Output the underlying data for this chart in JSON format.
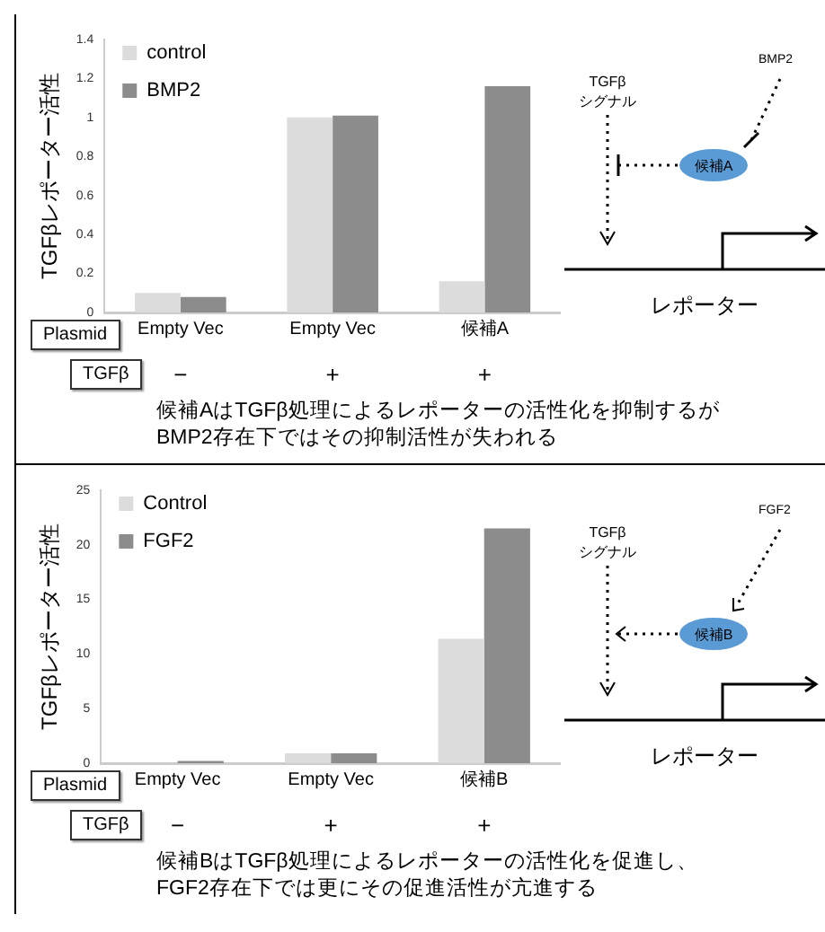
{
  "chart_data": [
    {
      "type": "bar",
      "categories": [
        "Empty Vec",
        "Empty Vec",
        "候補A"
      ],
      "ylabel": "TGFβレポーター活性",
      "series": [
        {
          "name": "control",
          "color": "#dcdcdc",
          "values": [
            0.1,
            1.0,
            0.16
          ]
        },
        {
          "name": "BMP2",
          "color": "#8c8c8c",
          "values": [
            0.08,
            1.01,
            1.16
          ]
        }
      ],
      "ylim": [
        0,
        1.4
      ],
      "yticks": [
        0,
        0.2,
        0.4,
        0.6,
        0.8,
        1,
        1.2,
        1.4
      ],
      "grid": false,
      "legend": "top left",
      "annotations": [
        "Plasmid",
        "TGFβ",
        "−",
        "+",
        "+",
        "候補AはTGFβ処理によるレポーターの活性化を抑制するが\nBMP2存在下ではその抑制活性が失われる",
        "TGFβ\nシグナル",
        "BMP2",
        "候補A",
        "レポーター"
      ]
    },
    {
      "type": "bar",
      "categories": [
        "Empty Vec",
        "Empty Vec",
        "候補B"
      ],
      "ylabel": "TGFβレポーター活性",
      "series": [
        {
          "name": "Control",
          "color": "#dcdcdc",
          "values": [
            0,
            0.9,
            11.4
          ]
        },
        {
          "name": "FGF2",
          "color": "#8c8c8c",
          "values": [
            0.2,
            0.9,
            21.5
          ]
        }
      ],
      "ylim": [
        0,
        25
      ],
      "yticks": [
        0,
        5,
        10,
        15,
        20,
        25
      ],
      "grid": false,
      "legend": "top left",
      "annotations": [
        "Plasmid",
        "TGFβ",
        "−",
        "+",
        "+",
        "候補BはTGFβ処理によるレポーターの活性化を促進し、\nFGF2存在下では更にその促進活性が亢進する",
        "TGFβ\nシグナル",
        "FGF2",
        "候補B",
        "レポーター"
      ]
    }
  ]
}
